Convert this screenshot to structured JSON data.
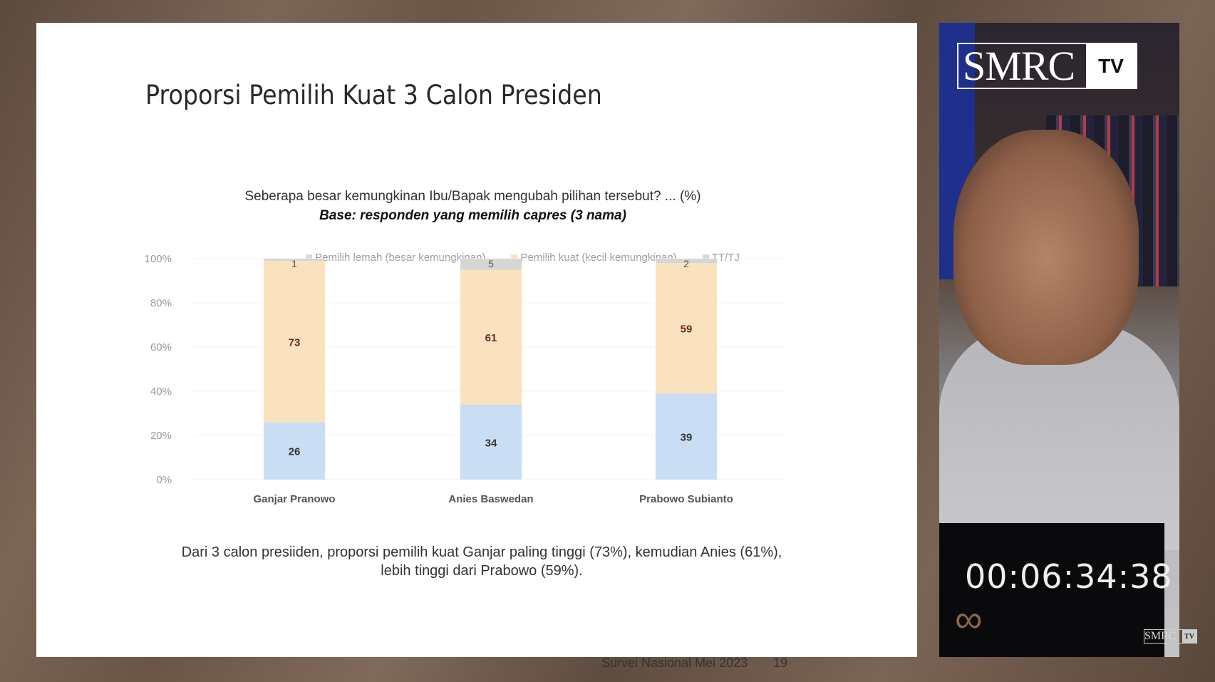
{
  "slide": {
    "title": "Proporsi Pemilih Kuat 3  Calon Presiden",
    "question": "Seberapa besar kemungkinan Ibu/Bapak mengubah pilihan tersebut? ... (%)",
    "base": "Base: responden yang memilih capres (3 nama)",
    "note_line1": "Dari 3 calon presiiden, proporsi pemilih kuat Ganjar paling tinggi (73%), kemudian Anies (61%),",
    "note_line2": "lebih tinggi dari Prabowo (59%).",
    "footer": "Survei Nasional Mei 2023",
    "page_number": "19"
  },
  "chart_data": {
    "type": "bar",
    "stacked": true,
    "categories": [
      "Ganjar Pranowo",
      "Anies Baswedan",
      "Prabowo Subianto"
    ],
    "series": [
      {
        "name": "Pemilih lemah (besar kemungkinan)",
        "values": [
          26,
          34,
          39
        ],
        "color": "#c9ddf5",
        "label_color": "#333"
      },
      {
        "name": "Pemilih kuat (kecil kemungkinan)",
        "values": [
          73,
          61,
          59
        ],
        "color": "#f9e2bd",
        "label_color": "#6b2a2a"
      },
      {
        "name": "TT/TJ",
        "values": [
          1,
          5,
          2
        ],
        "color": "#d6d6d6",
        "label_color": "#555"
      }
    ],
    "yticks": [
      "0%",
      "20%",
      "40%",
      "60%",
      "80%",
      "100%"
    ],
    "ylim": [
      0,
      100
    ],
    "legend": "top"
  },
  "video": {
    "logo_text": "SMRC",
    "logo_badge": "TV",
    "timer": "00:06:34:38",
    "infinity": "∞",
    "watermark_text": "SMRC",
    "watermark_badge": "TV"
  }
}
